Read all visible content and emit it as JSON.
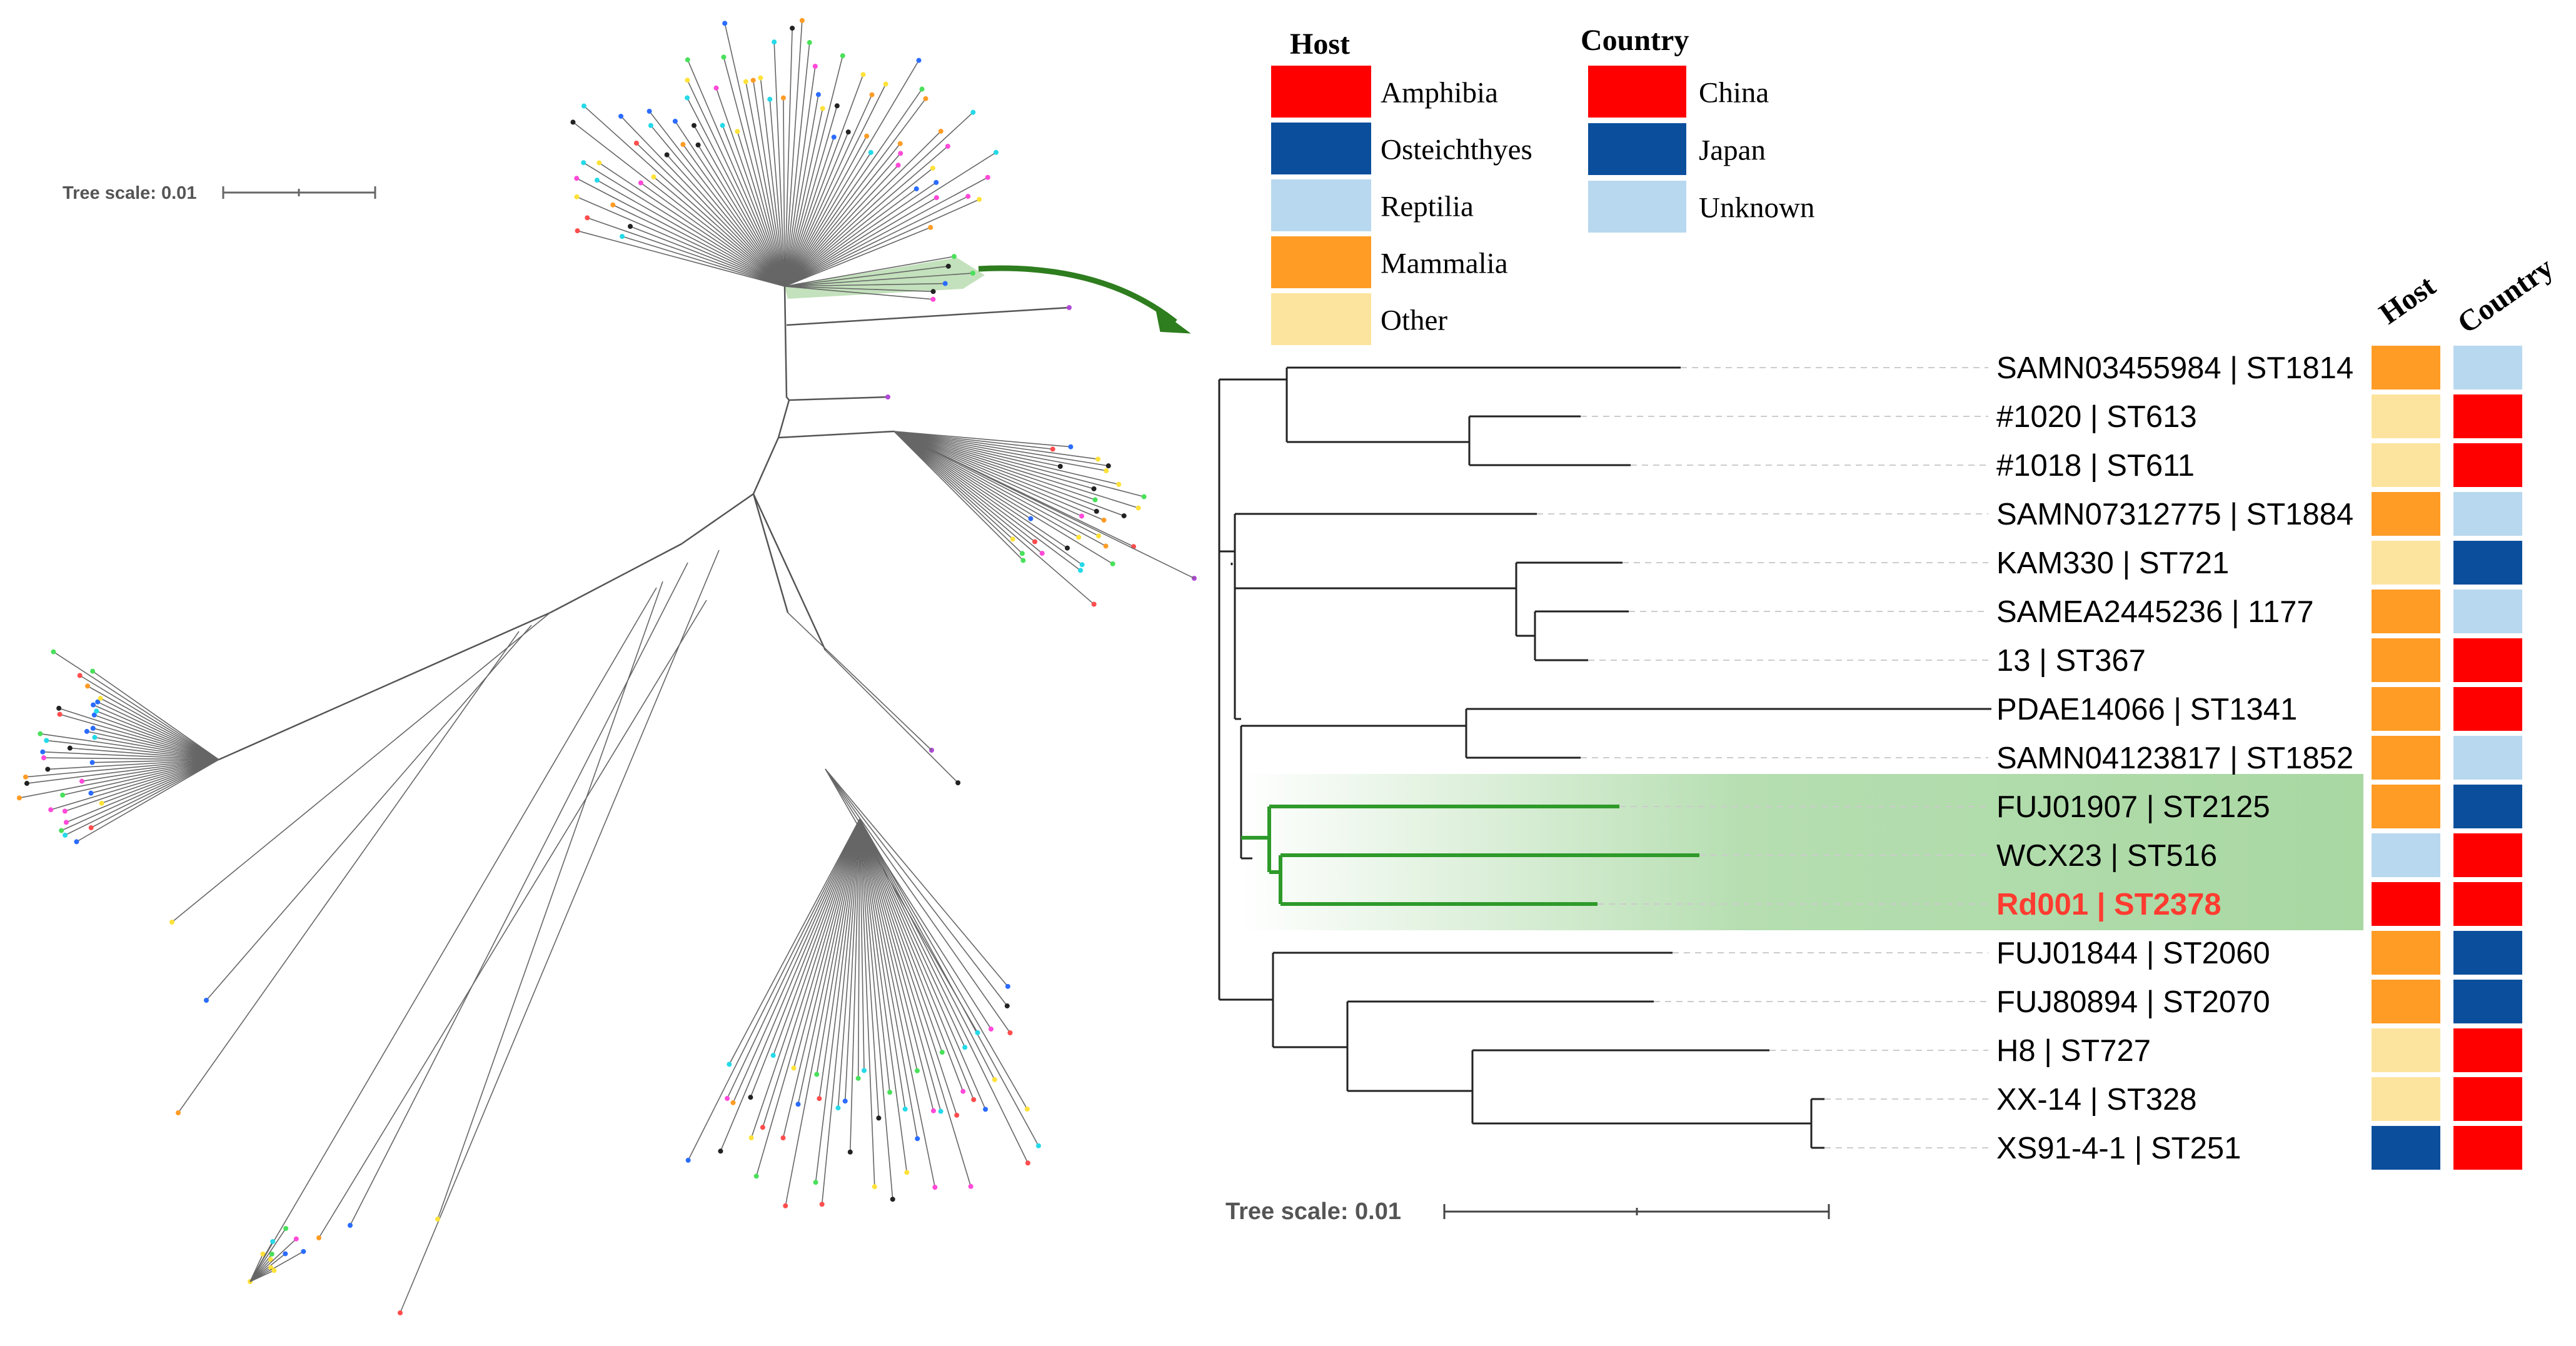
{
  "left_tree": {
    "scale_label": "Tree scale: 0.01",
    "highlighted_clade_color": "#b8dcb0",
    "arrow_color": "#2e7d1f"
  },
  "legends": {
    "host": {
      "title": "Host",
      "items": [
        {
          "label": "Amphibia",
          "color": "#ff0000"
        },
        {
          "label": "Osteichthyes",
          "color": "#0b4f9c"
        },
        {
          "label": "Reptilia",
          "color": "#b7d8ef"
        },
        {
          "label": "Mammalia",
          "color": "#ff9c26"
        },
        {
          "label": "Other",
          "color": "#fde49e"
        }
      ]
    },
    "country": {
      "title": "Country",
      "items": [
        {
          "label": "China",
          "color": "#ff0000"
        },
        {
          "label": "Japan",
          "color": "#0b4f9c"
        },
        {
          "label": "Unknown",
          "color": "#b7d8ef"
        }
      ]
    }
  },
  "right_tree": {
    "scale_label": "Tree scale: 0.01",
    "column_headers": {
      "host": "Host",
      "country": "Country"
    },
    "highlight_color": "#2e9a2a",
    "leaves": [
      {
        "label": "SAMN03455984 | ST1814",
        "host": "Mammalia",
        "country": "Unknown",
        "highlight": false
      },
      {
        "label": "#1020 | ST613",
        "host": "Other",
        "country": "China",
        "highlight": false
      },
      {
        "label": "#1018 | ST611",
        "host": "Other",
        "country": "China",
        "highlight": false
      },
      {
        "label": "SAMN07312775 | ST1884",
        "host": "Mammalia",
        "country": "Unknown",
        "highlight": false
      },
      {
        "label": "KAM330 | ST721",
        "host": "Other",
        "country": "Japan",
        "highlight": false
      },
      {
        "label": "SAMEA2445236 | 1177",
        "host": "Mammalia",
        "country": "Unknown",
        "highlight": false
      },
      {
        "label": "13 | ST367",
        "host": "Mammalia",
        "country": "China",
        "highlight": false
      },
      {
        "label": "PDAE14066 | ST1341",
        "host": "Mammalia",
        "country": "China",
        "highlight": false
      },
      {
        "label": "SAMN04123817 | ST1852",
        "host": "Mammalia",
        "country": "Unknown",
        "highlight": false
      },
      {
        "label": "FUJ01907 | ST2125",
        "host": "Mammalia",
        "country": "Japan",
        "highlight": false
      },
      {
        "label": "WCX23 | ST516",
        "host": "Reptilia",
        "country": "China",
        "highlight": false
      },
      {
        "label": "Rd001 | ST2378",
        "host": "Amphibia",
        "country": "China",
        "highlight": true
      },
      {
        "label": "FUJ01844 | ST2060",
        "host": "Mammalia",
        "country": "Japan",
        "highlight": false
      },
      {
        "label": "FUJ80894 | ST2070",
        "host": "Mammalia",
        "country": "Japan",
        "highlight": false
      },
      {
        "label": "H8 | ST727",
        "host": "Other",
        "country": "China",
        "highlight": false
      },
      {
        "label": "XX-14 | ST328",
        "host": "Other",
        "country": "China",
        "highlight": false
      },
      {
        "label": "XS91-4-1 | ST251",
        "host": "Osteichthyes",
        "country": "China",
        "highlight": false
      }
    ]
  }
}
